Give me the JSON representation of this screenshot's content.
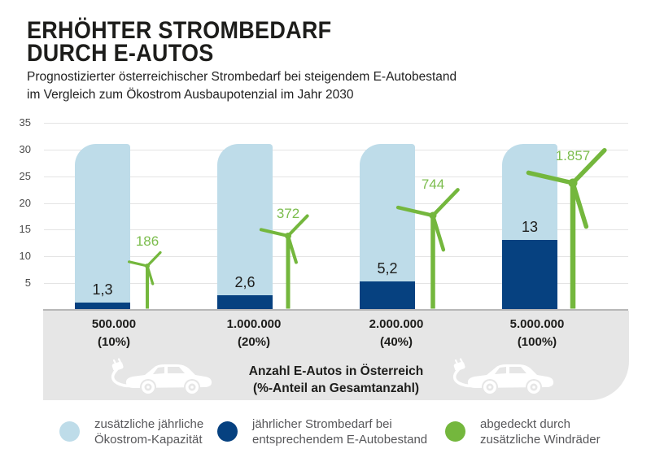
{
  "header": {
    "title_line1": "ERHÖHTER STROMBEDARF",
    "title_line2": "DURCH E-AUTOS",
    "subtitle_line1": "Prognostizierter österreichischer Strombedarf bei steigendem E-Autobestand",
    "subtitle_line2": "im Vergleich zum Ökostrom Ausbaupotenzial im Jahr 2030"
  },
  "colors": {
    "light_blue": "#bedce9",
    "dark_blue": "#064180",
    "green": "#74b73d",
    "green_text": "#7cbd4e",
    "grid": "#e4e4e4",
    "baseline": "#b8b8b8",
    "band_bg": "#e6e6e6",
    "text_dark": "#1d1d1b",
    "legend_text": "#57575a",
    "axis_text": "#4b4b4b"
  },
  "chart_data": {
    "type": "bar",
    "title": "Erhöhter Strombedarf durch E-Autos",
    "subtitle": "Prognostizierter österreichischer Strombedarf bei steigendem E-Autobestand im Vergleich zum Ökostrom Ausbaupotenzial im Jahr 2030",
    "ylim": [
      0,
      35
    ],
    "y_ticks": [
      5,
      10,
      15,
      20,
      25,
      30,
      35
    ],
    "grid": true,
    "legend_position": "bottom",
    "categories": [
      {
        "count": "500.000",
        "share": "(10%)"
      },
      {
        "count": "1.000.000",
        "share": "(20%)"
      },
      {
        "count": "2.000.000",
        "share": "(40%)"
      },
      {
        "count": "5.000.000",
        "share": "(100%)"
      }
    ],
    "series": [
      {
        "name": "zusätzliche jährliche Ökostrom-Kapazität",
        "color_key": "light_blue",
        "values": [
          31,
          31,
          31,
          31
        ]
      },
      {
        "name": "jährlicher Strombedarf bei entsprechendem E-Autobestand",
        "color_key": "dark_blue",
        "values": [
          1.3,
          2.6,
          5.2,
          13
        ],
        "labels": [
          "1,3",
          "2,6",
          "5,2",
          "13"
        ]
      },
      {
        "name": "abgedeckt durch zusätzliche Windräder",
        "color_key": "green",
        "values": [
          186,
          372,
          744,
          1857
        ],
        "labels": [
          "186",
          "372",
          "744",
          "1.857"
        ]
      }
    ],
    "x_axis_caption_line1": "Anzahl E-Autos in Österreich",
    "x_axis_caption_line2": "(%-Anteil an Gesamtanzahl)"
  },
  "legend": {
    "items": [
      {
        "line1": "zusätzliche jährliche",
        "line2": "Ökostrom-Kapazität",
        "color_key": "light_blue"
      },
      {
        "line1": "jährlicher Strombedarf bei",
        "line2": "entsprechendem E-Autobestand",
        "color_key": "dark_blue"
      },
      {
        "line1": "abgedeckt durch",
        "line2": "zusätzliche Windräder",
        "color_key": "green"
      }
    ]
  },
  "icons": {
    "car": "e-car-icon",
    "turbine": "wind-turbine-icon"
  }
}
